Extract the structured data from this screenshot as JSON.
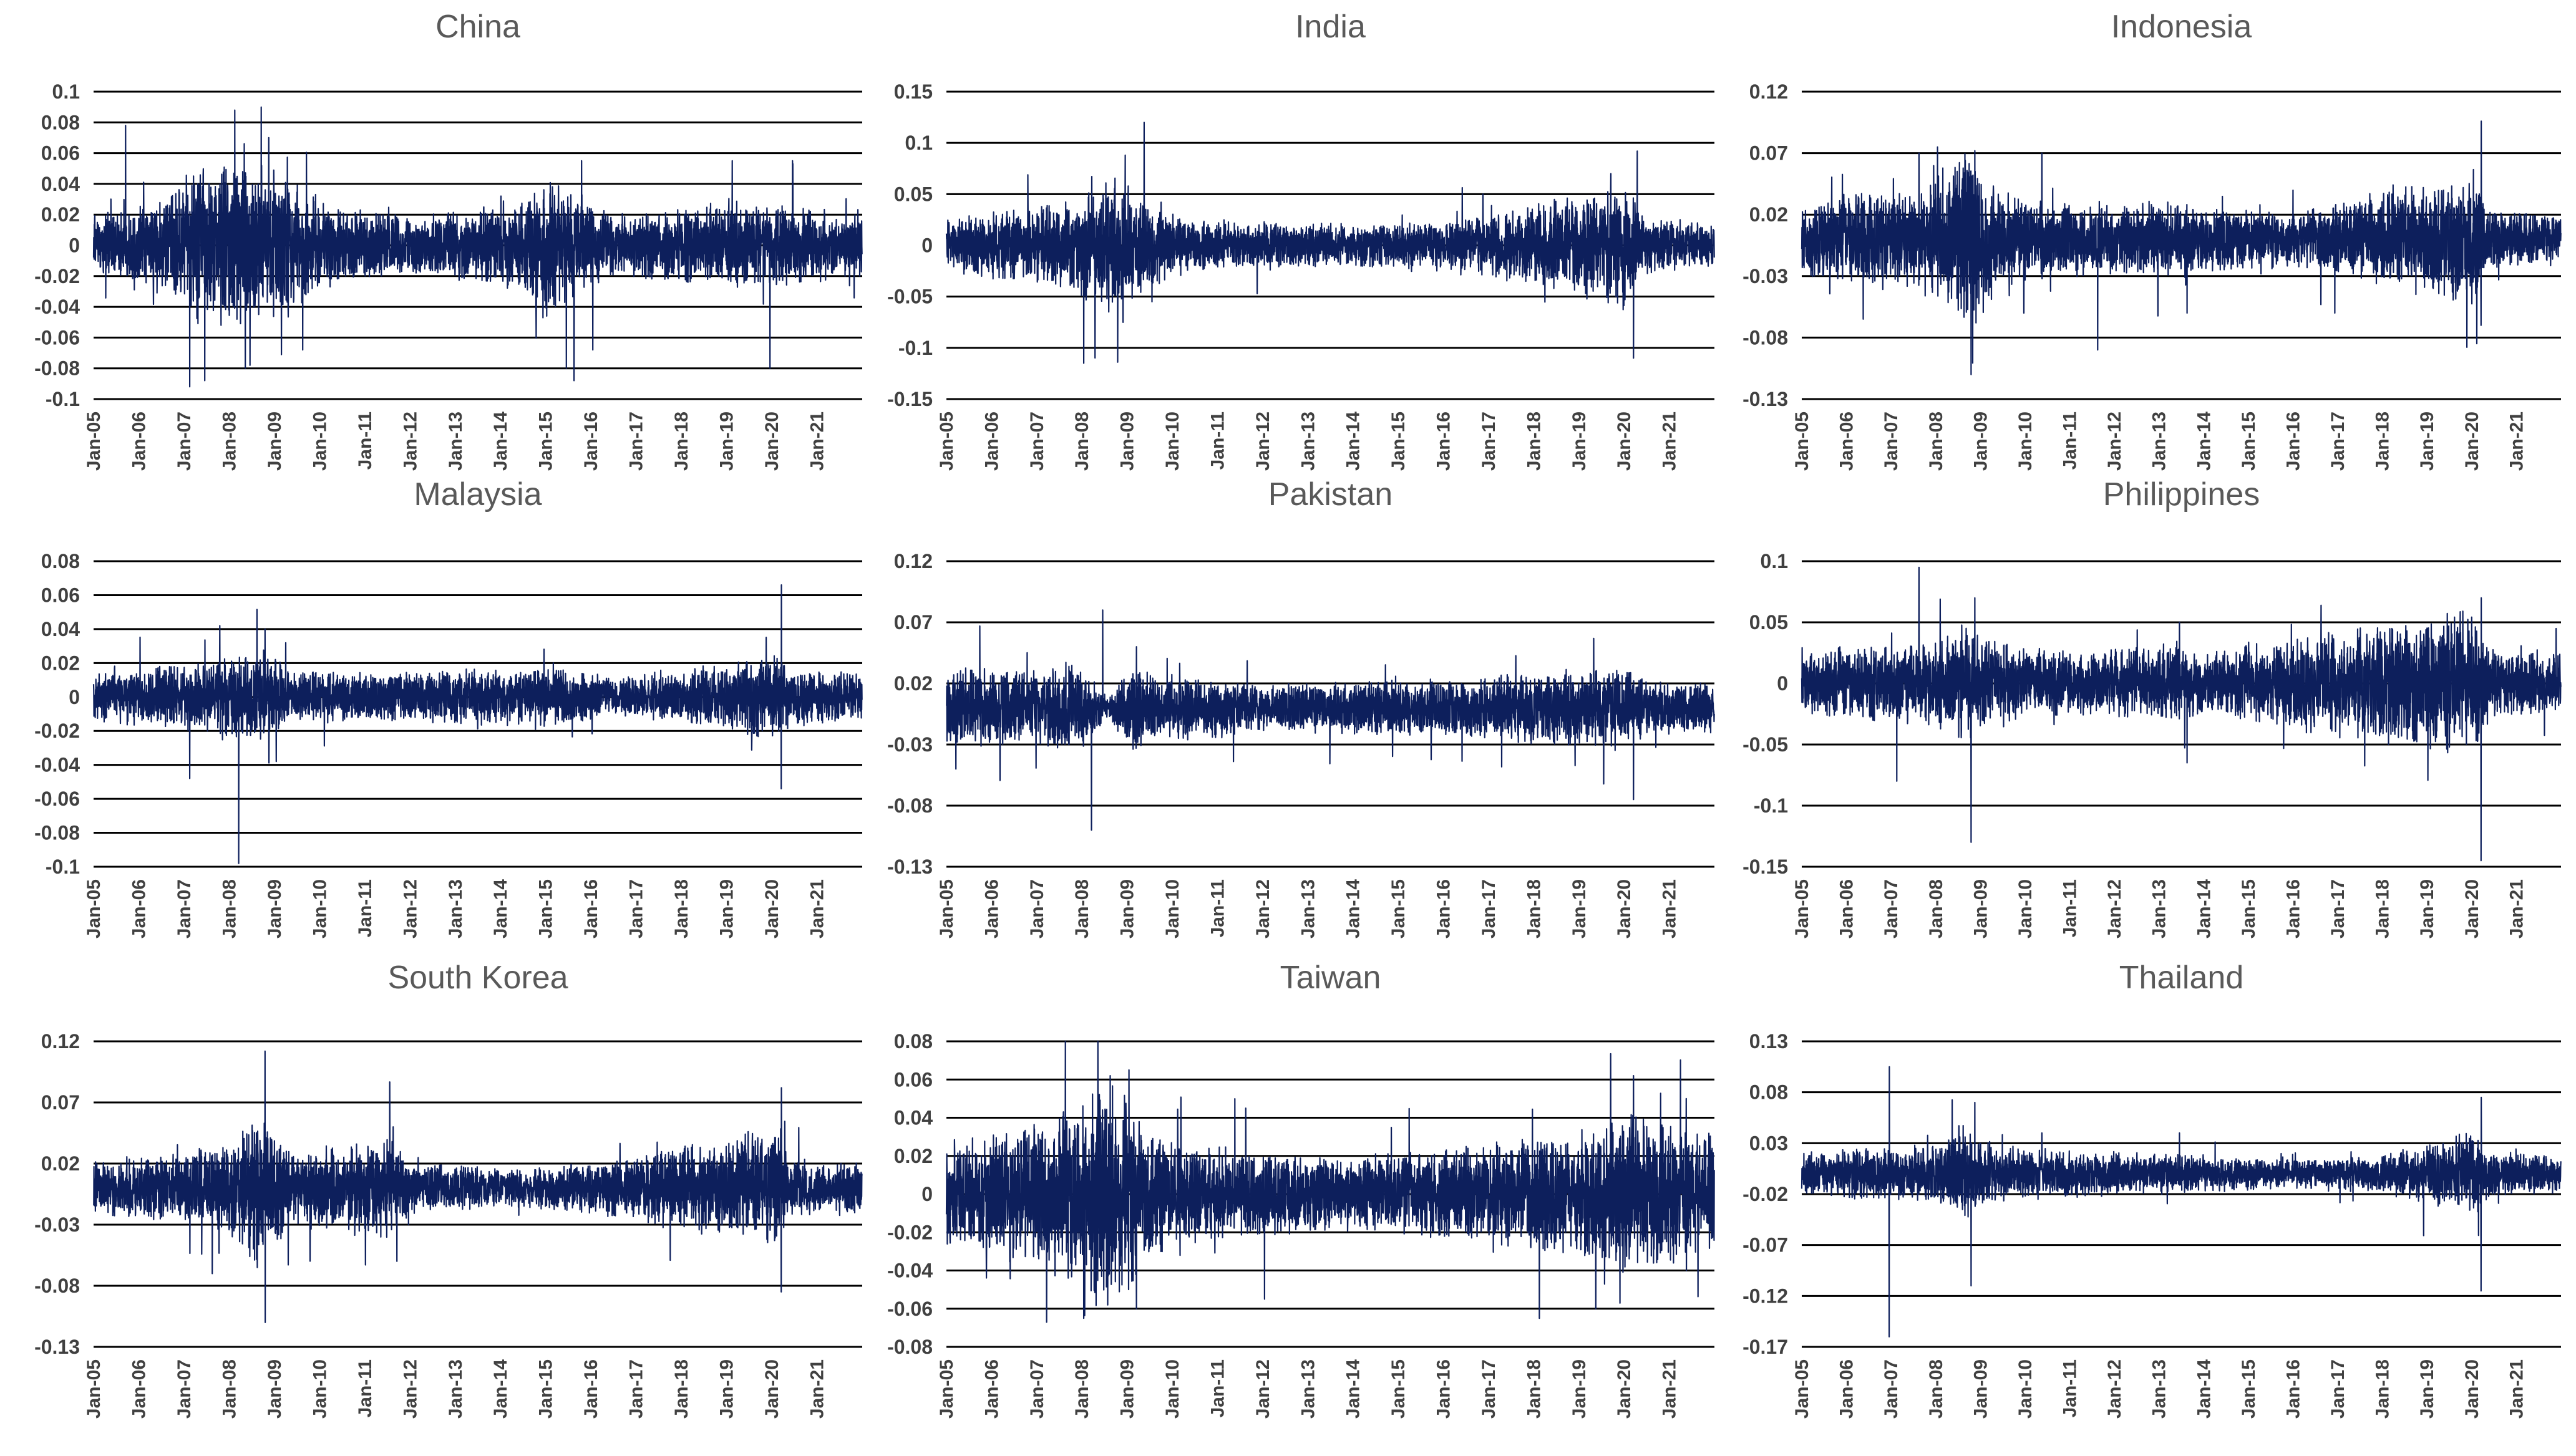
{
  "x_tick_labels": [
    "Jan-05",
    "Jan-06",
    "Jan-07",
    "Jan-08",
    "Jan-09",
    "Jan-10",
    "Jan-11",
    "Jan-12",
    "Jan-13",
    "Jan-14",
    "Jan-15",
    "Jan-16",
    "Jan-17",
    "Jan-18",
    "Jan-19",
    "Jan-20",
    "Jan-21"
  ],
  "line_color": "#0d1f5c",
  "chart_data": [
    {
      "type": "line",
      "title": "China",
      "ylim": [
        -0.1,
        0.1
      ],
      "yticks": [
        0.1,
        0.08,
        0.06,
        0.04,
        0.02,
        0,
        -0.02,
        -0.04,
        -0.06,
        -0.08,
        -0.1
      ],
      "ytick_labels": [
        "0.1",
        "0.08",
        "0.06",
        "0.04",
        "0.02",
        "0",
        "-0.02",
        "-0.04",
        "-0.06",
        "-0.08",
        "-0.1"
      ],
      "x_range": [
        "2005-01",
        "2021-12"
      ],
      "volatility_regimes": [
        [
          "2005-01",
          0.01
        ],
        [
          "2006-06",
          0.014
        ],
        [
          "2007-01",
          0.022
        ],
        [
          "2007-06",
          0.028
        ],
        [
          "2008-01",
          0.03
        ],
        [
          "2009-06",
          0.022
        ],
        [
          "2010-06",
          0.013
        ],
        [
          "2012-01",
          0.01
        ],
        [
          "2014-06",
          0.014
        ],
        [
          "2015-01",
          0.024
        ],
        [
          "2016-06",
          0.01
        ],
        [
          "2018-01",
          0.012
        ],
        [
          "2019-01",
          0.015
        ],
        [
          "2020-01",
          0.014
        ],
        [
          "2021-12",
          0.01
        ]
      ],
      "spikes": [
        [
          "2005-09",
          0.078
        ],
        [
          "2007-02",
          -0.092
        ],
        [
          "2007-06",
          -0.088
        ],
        [
          "2008-02",
          0.088
        ],
        [
          "2008-06",
          -0.078
        ],
        [
          "2008-09",
          0.09
        ],
        [
          "2008-11",
          0.07
        ],
        [
          "2009-08",
          -0.068
        ],
        [
          "2015-06",
          -0.08
        ],
        [
          "2015-08",
          -0.088
        ],
        [
          "2015-10",
          0.055
        ],
        [
          "2016-01",
          -0.068
        ],
        [
          "2019-02",
          0.055
        ],
        [
          "2019-12",
          -0.08
        ],
        [
          "2020-06",
          0.055
        ]
      ]
    },
    {
      "type": "line",
      "title": "India",
      "ylim": [
        -0.15,
        0.15
      ],
      "yticks": [
        0.15,
        0.1,
        0.05,
        0,
        -0.05,
        -0.1,
        -0.15
      ],
      "ytick_labels": [
        "0.15",
        "0.1",
        "0.05",
        "0",
        "-0.05",
        "-0.1",
        "-0.15"
      ],
      "x_range": [
        "2005-01",
        "2021-12"
      ],
      "volatility_regimes": [
        [
          "2005-01",
          0.013
        ],
        [
          "2006-05",
          0.018
        ],
        [
          "2007-06",
          0.02
        ],
        [
          "2008-01",
          0.027
        ],
        [
          "2008-10",
          0.035
        ],
        [
          "2009-06",
          0.022
        ],
        [
          "2010-06",
          0.012
        ],
        [
          "2013-06",
          0.011
        ],
        [
          "2016-01",
          0.011
        ],
        [
          "2020-02",
          0.03
        ],
        [
          "2020-06",
          0.014
        ],
        [
          "2021-12",
          0.011
        ]
      ],
      "spikes": [
        [
          "2008-01",
          -0.115
        ],
        [
          "2008-10",
          -0.114
        ],
        [
          "2008-12",
          0.088
        ],
        [
          "2009-05",
          0.12
        ],
        [
          "2016-11",
          0.05
        ],
        [
          "2020-03",
          -0.11
        ],
        [
          "2020-04",
          0.092
        ],
        [
          "2019-09",
          0.07
        ]
      ]
    },
    {
      "type": "line",
      "title": "Indonesia",
      "ylim": [
        -0.13,
        0.12
      ],
      "yticks": [
        0.12,
        0.07,
        0.02,
        -0.03,
        -0.08,
        -0.13
      ],
      "ytick_labels": [
        "0.12",
        "0.07",
        "0.02",
        "-0.03",
        "-0.08",
        "-0.13"
      ],
      "x_range": [
        "2005-01",
        "2021-12"
      ],
      "volatility_regimes": [
        [
          "2005-01",
          0.014
        ],
        [
          "2006-05",
          0.02
        ],
        [
          "2007-06",
          0.02
        ],
        [
          "2008-01",
          0.025
        ],
        [
          "2008-10",
          0.038
        ],
        [
          "2009-06",
          0.02
        ],
        [
          "2010-06",
          0.015
        ],
        [
          "2013-06",
          0.015
        ],
        [
          "2016-01",
          0.011
        ],
        [
          "2020-02",
          0.028
        ],
        [
          "2020-06",
          0.013
        ],
        [
          "2021-12",
          0.011
        ]
      ],
      "spikes": [
        [
          "2006-05",
          -0.065
        ],
        [
          "2007-08",
          0.07
        ],
        [
          "2008-01",
          0.075
        ],
        [
          "2008-10",
          -0.11
        ],
        [
          "2008-11",
          0.072
        ],
        [
          "2010-05",
          0.07
        ],
        [
          "2011-08",
          -0.09
        ],
        [
          "2013-08",
          -0.06
        ],
        [
          "2020-03",
          -0.07
        ],
        [
          "2020-03",
          0.096
        ]
      ]
    },
    {
      "type": "line",
      "title": "Malaysia",
      "ylim": [
        -0.1,
        0.08
      ],
      "yticks": [
        0.08,
        0.06,
        0.04,
        0.02,
        0,
        -0.02,
        -0.04,
        -0.06,
        -0.08,
        -0.1
      ],
      "ytick_labels": [
        "0.08",
        "0.06",
        "0.04",
        "0.02",
        "0",
        "-0.02",
        "-0.04",
        "-0.06",
        "-0.08",
        "-0.1"
      ],
      "x_range": [
        "2005-01",
        "2021-12"
      ],
      "volatility_regimes": [
        [
          "2005-01",
          0.007
        ],
        [
          "2007-01",
          0.01
        ],
        [
          "2008-01",
          0.012
        ],
        [
          "2008-10",
          0.015
        ],
        [
          "2009-06",
          0.008
        ],
        [
          "2011-01",
          0.007
        ],
        [
          "2015-01",
          0.009
        ],
        [
          "2016-06",
          0.006
        ],
        [
          "2018-01",
          0.008
        ],
        [
          "2020-02",
          0.013
        ],
        [
          "2020-06",
          0.009
        ],
        [
          "2021-12",
          0.007
        ]
      ],
      "spikes": [
        [
          "2007-02",
          -0.048
        ],
        [
          "2007-10",
          0.042
        ],
        [
          "2008-03",
          -0.098
        ],
        [
          "2008-10",
          0.04
        ],
        [
          "2009-01",
          -0.038
        ],
        [
          "2020-03",
          -0.054
        ],
        [
          "2020-03",
          0.066
        ]
      ]
    },
    {
      "type": "line",
      "title": "Pakistan",
      "ylim": [
        -0.13,
        0.12
      ],
      "yticks": [
        0.12,
        0.07,
        0.02,
        -0.03,
        -0.08,
        -0.13
      ],
      "ytick_labels": [
        "0.12",
        "0.07",
        "0.02",
        "-0.03",
        "-0.08",
        "-0.13"
      ],
      "x_range": [
        "2005-01",
        "2021-12"
      ],
      "volatility_regimes": [
        [
          "2005-01",
          0.018
        ],
        [
          "2006-06",
          0.016
        ],
        [
          "2007-01",
          0.015
        ],
        [
          "2008-01",
          0.02
        ],
        [
          "2008-08",
          0.004
        ],
        [
          "2009-01",
          0.018
        ],
        [
          "2010-01",
          0.014
        ],
        [
          "2012-01",
          0.01
        ],
        [
          "2016-01",
          0.012
        ],
        [
          "2020-02",
          0.018
        ],
        [
          "2020-06",
          0.012
        ],
        [
          "2021-12",
          0.01
        ]
      ],
      "spikes": [
        [
          "2008-03",
          -0.1
        ],
        [
          "2008-06",
          0.08
        ],
        [
          "2005-03",
          -0.05
        ],
        [
          "2020-03",
          -0.075
        ],
        [
          "2009-03",
          0.05
        ]
      ]
    },
    {
      "type": "line",
      "title": "Philippines",
      "ylim": [
        -0.15,
        0.1
      ],
      "yticks": [
        0.1,
        0.05,
        0,
        -0.05,
        -0.1,
        -0.15
      ],
      "ytick_labels": [
        "0.1",
        "0.05",
        "0",
        "-0.05",
        "-0.1",
        "-0.15"
      ],
      "x_range": [
        "2005-01",
        "2021-12"
      ],
      "volatility_regimes": [
        [
          "2005-01",
          0.013
        ],
        [
          "2007-01",
          0.016
        ],
        [
          "2008-01",
          0.018
        ],
        [
          "2008-10",
          0.025
        ],
        [
          "2009-06",
          0.016
        ],
        [
          "2011-01",
          0.013
        ],
        [
          "2013-06",
          0.016
        ],
        [
          "2014-01",
          0.013
        ],
        [
          "2020-02",
          0.03
        ],
        [
          "2020-06",
          0.014
        ],
        [
          "2021-12",
          0.013
        ]
      ],
      "spikes": [
        [
          "2007-08",
          0.095
        ],
        [
          "2007-02",
          -0.08
        ],
        [
          "2008-10",
          -0.13
        ],
        [
          "2008-11",
          0.07
        ],
        [
          "2013-06",
          0.05
        ],
        [
          "2013-08",
          -0.065
        ],
        [
          "2020-03",
          -0.145
        ],
        [
          "2020-03",
          0.07
        ]
      ]
    },
    {
      "type": "line",
      "title": "South Korea",
      "ylim": [
        -0.13,
        0.12
      ],
      "yticks": [
        0.12,
        0.07,
        0.02,
        -0.03,
        -0.08,
        -0.13
      ],
      "ytick_labels": [
        "0.12",
        "0.07",
        "0.02",
        "-0.03",
        "-0.08",
        "-0.13"
      ],
      "x_range": [
        "2005-01",
        "2021-12"
      ],
      "volatility_regimes": [
        [
          "2005-01",
          0.011
        ],
        [
          "2006-06",
          0.013
        ],
        [
          "2007-06",
          0.016
        ],
        [
          "2008-01",
          0.02
        ],
        [
          "2008-09",
          0.035
        ],
        [
          "2009-06",
          0.015
        ],
        [
          "2011-08",
          0.022
        ],
        [
          "2012-01",
          0.011
        ],
        [
          "2014-01",
          0.008
        ],
        [
          "2016-01",
          0.01
        ],
        [
          "2020-02",
          0.025
        ],
        [
          "2020-06",
          0.012
        ],
        [
          "2021-12",
          0.011
        ]
      ],
      "spikes": [
        [
          "2007-08",
          -0.07
        ],
        [
          "2008-10",
          0.112
        ],
        [
          "2008-10",
          -0.11
        ],
        [
          "2011-08",
          0.05
        ],
        [
          "2011-09",
          -0.06
        ],
        [
          "2020-03",
          -0.085
        ],
        [
          "2020-03",
          0.082
        ]
      ]
    },
    {
      "type": "line",
      "title": "Taiwan",
      "ylim": [
        -0.08,
        0.08
      ],
      "yticks": [
        0.08,
        0.06,
        0.04,
        0.02,
        0,
        -0.02,
        -0.04,
        -0.06,
        -0.08
      ],
      "ytick_labels": [
        "0.08",
        "0.06",
        "0.04",
        "0.02",
        "0",
        "-0.02",
        "-0.04",
        "-0.06",
        "-0.08"
      ],
      "x_range": [
        "2005-01",
        "2021-12"
      ],
      "volatility_regimes": [
        [
          "2005-01",
          0.014
        ],
        [
          "2007-01",
          0.018
        ],
        [
          "2008-01",
          0.025
        ],
        [
          "2008-09",
          0.032
        ],
        [
          "2009-06",
          0.018
        ],
        [
          "2010-06",
          0.014
        ],
        [
          "2012-01",
          0.011
        ],
        [
          "2014-01",
          0.01
        ],
        [
          "2016-01",
          0.012
        ],
        [
          "2018-06",
          0.015
        ],
        [
          "2020-02",
          0.022
        ],
        [
          "2021-12",
          0.016
        ]
      ],
      "spikes": [
        [
          "2008-01",
          -0.065
        ],
        [
          "2008-08",
          0.062
        ],
        [
          "2009-01",
          0.065
        ],
        [
          "2009-03",
          -0.06
        ],
        [
          "2011-08",
          0.045
        ],
        [
          "2012-01",
          -0.055
        ],
        [
          "2018-02",
          -0.065
        ],
        [
          "2019-05",
          -0.06
        ],
        [
          "2020-03",
          0.062
        ],
        [
          "2021-05",
          0.05
        ],
        [
          "2021-05",
          -0.04
        ]
      ]
    },
    {
      "type": "line",
      "title": "Thailand",
      "ylim": [
        -0.17,
        0.13
      ],
      "yticks": [
        0.13,
        0.08,
        0.03,
        -0.02,
        -0.07,
        -0.12,
        -0.17
      ],
      "ytick_labels": [
        "0.13",
        "0.08",
        "0.03",
        "-0.02",
        "-0.07",
        "-0.12",
        "-0.17"
      ],
      "x_range": [
        "2005-01",
        "2021-12"
      ],
      "volatility_regimes": [
        [
          "2005-01",
          0.011
        ],
        [
          "2006-06",
          0.013
        ],
        [
          "2007-01",
          0.012
        ],
        [
          "2008-01",
          0.015
        ],
        [
          "2008-09",
          0.025
        ],
        [
          "2009-06",
          0.014
        ],
        [
          "2011-01",
          0.012
        ],
        [
          "2014-01",
          0.009
        ],
        [
          "2016-01",
          0.007
        ],
        [
          "2018-01",
          0.009
        ],
        [
          "2020-02",
          0.022
        ],
        [
          "2020-06",
          0.011
        ],
        [
          "2021-12",
          0.01
        ]
      ],
      "spikes": [
        [
          "2006-12",
          -0.16
        ],
        [
          "2006-12",
          0.105
        ],
        [
          "2008-10",
          -0.11
        ],
        [
          "2008-11",
          0.07
        ],
        [
          "2010-05",
          0.04
        ],
        [
          "2013-06",
          0.04
        ],
        [
          "2020-03",
          -0.115
        ],
        [
          "2020-03",
          0.075
        ]
      ]
    }
  ]
}
